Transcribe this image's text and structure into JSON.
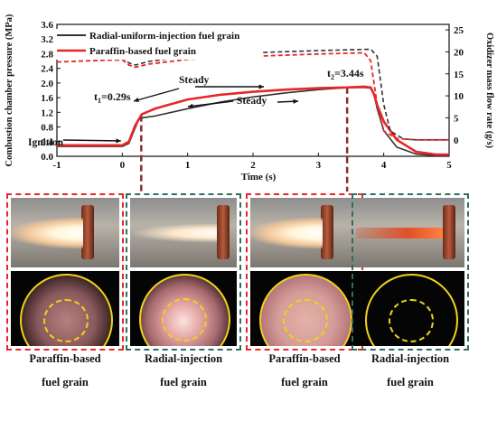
{
  "chart_data": {
    "type": "line",
    "xlabel": "Time (s)",
    "ylabel": "Combustion chamber pressure (MPa)",
    "y2label": "Oxidizer mass flow rate (g/s)",
    "xlim": [
      -1,
      5
    ],
    "ylim": [
      0,
      3.6
    ],
    "y2lim": [
      -3.75,
      26.25
    ],
    "xticks": [
      "-1",
      "0",
      "1",
      "2",
      "3",
      "4",
      "5"
    ],
    "yticks": [
      "0.0",
      "0.4",
      "0.8",
      "1.2",
      "1.6",
      "2.0",
      "2.4",
      "2.8",
      "3.2",
      "3.6"
    ],
    "y2ticks": [
      "0",
      "5",
      "10",
      "15",
      "20",
      "25"
    ],
    "legend_position": "top-left",
    "grid": false,
    "colors": {
      "radial": "#333333",
      "paraffin": "#e8262a"
    },
    "series": [
      {
        "name": "Radial-uniform-injection fuel grain",
        "axis": "pressure",
        "x": [
          -1,
          -0.5,
          0,
          0.1,
          0.18,
          0.25,
          0.3,
          0.5,
          1.0,
          1.5,
          2.0,
          2.5,
          3.0,
          3.4,
          3.7,
          3.8,
          3.85,
          3.9,
          4.0,
          4.2,
          4.5,
          4.8,
          5.0
        ],
        "y": [
          0.27,
          0.27,
          0.27,
          0.35,
          0.7,
          1.0,
          1.05,
          1.1,
          1.3,
          1.48,
          1.62,
          1.73,
          1.82,
          1.87,
          1.88,
          1.86,
          1.7,
          1.3,
          0.7,
          0.25,
          0.06,
          0.02,
          0.02
        ]
      },
      {
        "name": "Paraffin-based fuel grain",
        "axis": "pressure",
        "x": [
          -1,
          -0.5,
          0,
          0.1,
          0.2,
          0.3,
          0.5,
          1.0,
          1.5,
          2.0,
          2.5,
          3.0,
          3.44,
          3.7,
          3.8,
          3.85,
          3.9,
          4.0,
          4.2,
          4.5,
          4.8,
          5.0
        ],
        "y": [
          0.3,
          0.3,
          0.3,
          0.4,
          0.85,
          1.15,
          1.3,
          1.55,
          1.68,
          1.76,
          1.82,
          1.86,
          1.88,
          1.9,
          1.88,
          1.7,
          1.4,
          0.95,
          0.45,
          0.12,
          0.05,
          0.05
        ]
      },
      {
        "name": "Radial-uniform-injection fuel grain",
        "axis": "oxidizer",
        "x": [
          -1,
          -0.5,
          0,
          0.1,
          0.2,
          0.4,
          1.0,
          2.0,
          3.0,
          3.8,
          3.9,
          4.0,
          4.1,
          4.3,
          4.5,
          5.0
        ],
        "y": [
          18.5,
          18.7,
          18.8,
          17.5,
          17.0,
          17.8,
          19.0,
          19.8,
          20.3,
          20.6,
          19.0,
          8.0,
          2.0,
          0.2,
          0,
          0
        ]
      },
      {
        "name": "Paraffin-based fuel grain",
        "axis": "oxidizer",
        "x": [
          -1,
          -0.5,
          0,
          0.1,
          0.2,
          0.4,
          1.0,
          2.0,
          3.0,
          3.7,
          3.8,
          3.9,
          4.0,
          4.2,
          4.5,
          5.0
        ],
        "y": [
          17.7,
          18.0,
          18.2,
          17.0,
          16.5,
          17.2,
          18.3,
          19.0,
          19.5,
          19.8,
          18.0,
          8.0,
          2.0,
          0.3,
          0,
          0
        ]
      }
    ],
    "annotations": {
      "ignition": "Ignition",
      "steady_red": "Steady",
      "steady_black": "Steady",
      "t1_label": "t1=0.29s",
      "t2_label": "t2=3.44s",
      "t1": 0.29,
      "t2": 3.44
    }
  },
  "panels": [
    {
      "caption_line1": "Paraffin-based",
      "caption_line2": "fuel grain",
      "border_color": "#e8262a",
      "photo": "bright-flame",
      "glow": "pink-diffuse"
    },
    {
      "caption_line1": "Radial-injection",
      "caption_line2": "fuel grain",
      "border_color": "#2f6e5e",
      "photo": "short-flame",
      "glow": "pink-bright-center"
    },
    {
      "caption_line1": "Paraffin-based",
      "caption_line2": "fuel grain",
      "border_color": "#e8262a",
      "photo": "bright-flame",
      "glow": "pink-full"
    },
    {
      "caption_line1": "Radial-injection",
      "caption_line2": "fuel grain",
      "border_color": "#2f6e5e",
      "photo": "thin-red-flame",
      "glow": "dark"
    }
  ]
}
